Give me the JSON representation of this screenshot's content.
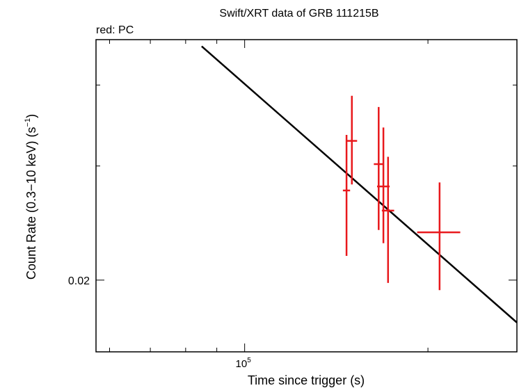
{
  "chart_data": {
    "type": "scatter",
    "title": "Swift/XRT data of GRB 111215B",
    "subtitle": "red: PC",
    "xlabel": "Time since trigger (s)",
    "ylabel_main": "Count Rate (0.3−10 keV) (s",
    "ylabel_sup": "−1",
    "ylabel_close": ")",
    "x_scale": "log",
    "y_scale": "log",
    "xlim": [
      57000,
      280000
    ],
    "ylim": [
      0.0155,
      0.047
    ],
    "x_tick_label": {
      "base": "10",
      "exp": "5",
      "value": 100000
    },
    "y_tick_label": {
      "text": "0.02",
      "value": 0.02
    },
    "grid": false,
    "colors": {
      "data": "#e8181c",
      "model": "#000000"
    },
    "series": [
      {
        "points": [
          {
            "x": 147000,
            "y": 0.0275,
            "x_err": [
              145000,
              149000
            ],
            "y_err": [
              0.0218,
              0.0335
            ]
          },
          {
            "x": 150000,
            "y": 0.0328,
            "x_err": [
              147000,
              153000
            ],
            "y_err": [
              0.0281,
              0.0385
            ]
          },
          {
            "x": 166000,
            "y": 0.0302,
            "x_err": [
              163000,
              169000
            ],
            "y_err": [
              0.0239,
              0.037
            ]
          },
          {
            "x": 169000,
            "y": 0.0279,
            "x_err": [
              165000,
              173000
            ],
            "y_err": [
              0.0228,
              0.0344
            ]
          },
          {
            "x": 172000,
            "y": 0.0256,
            "x_err": [
              168000,
              176000
            ],
            "y_err": [
              0.0198,
              0.031
            ]
          },
          {
            "x": 209000,
            "y": 0.0237,
            "x_err": [
              192000,
              226000
            ],
            "y_err": [
              0.0193,
              0.0283
            ]
          }
        ]
      }
    ],
    "model_line": {
      "points": [
        [
          85000,
          0.0459
        ],
        [
          280000,
          0.0172
        ]
      ]
    }
  }
}
